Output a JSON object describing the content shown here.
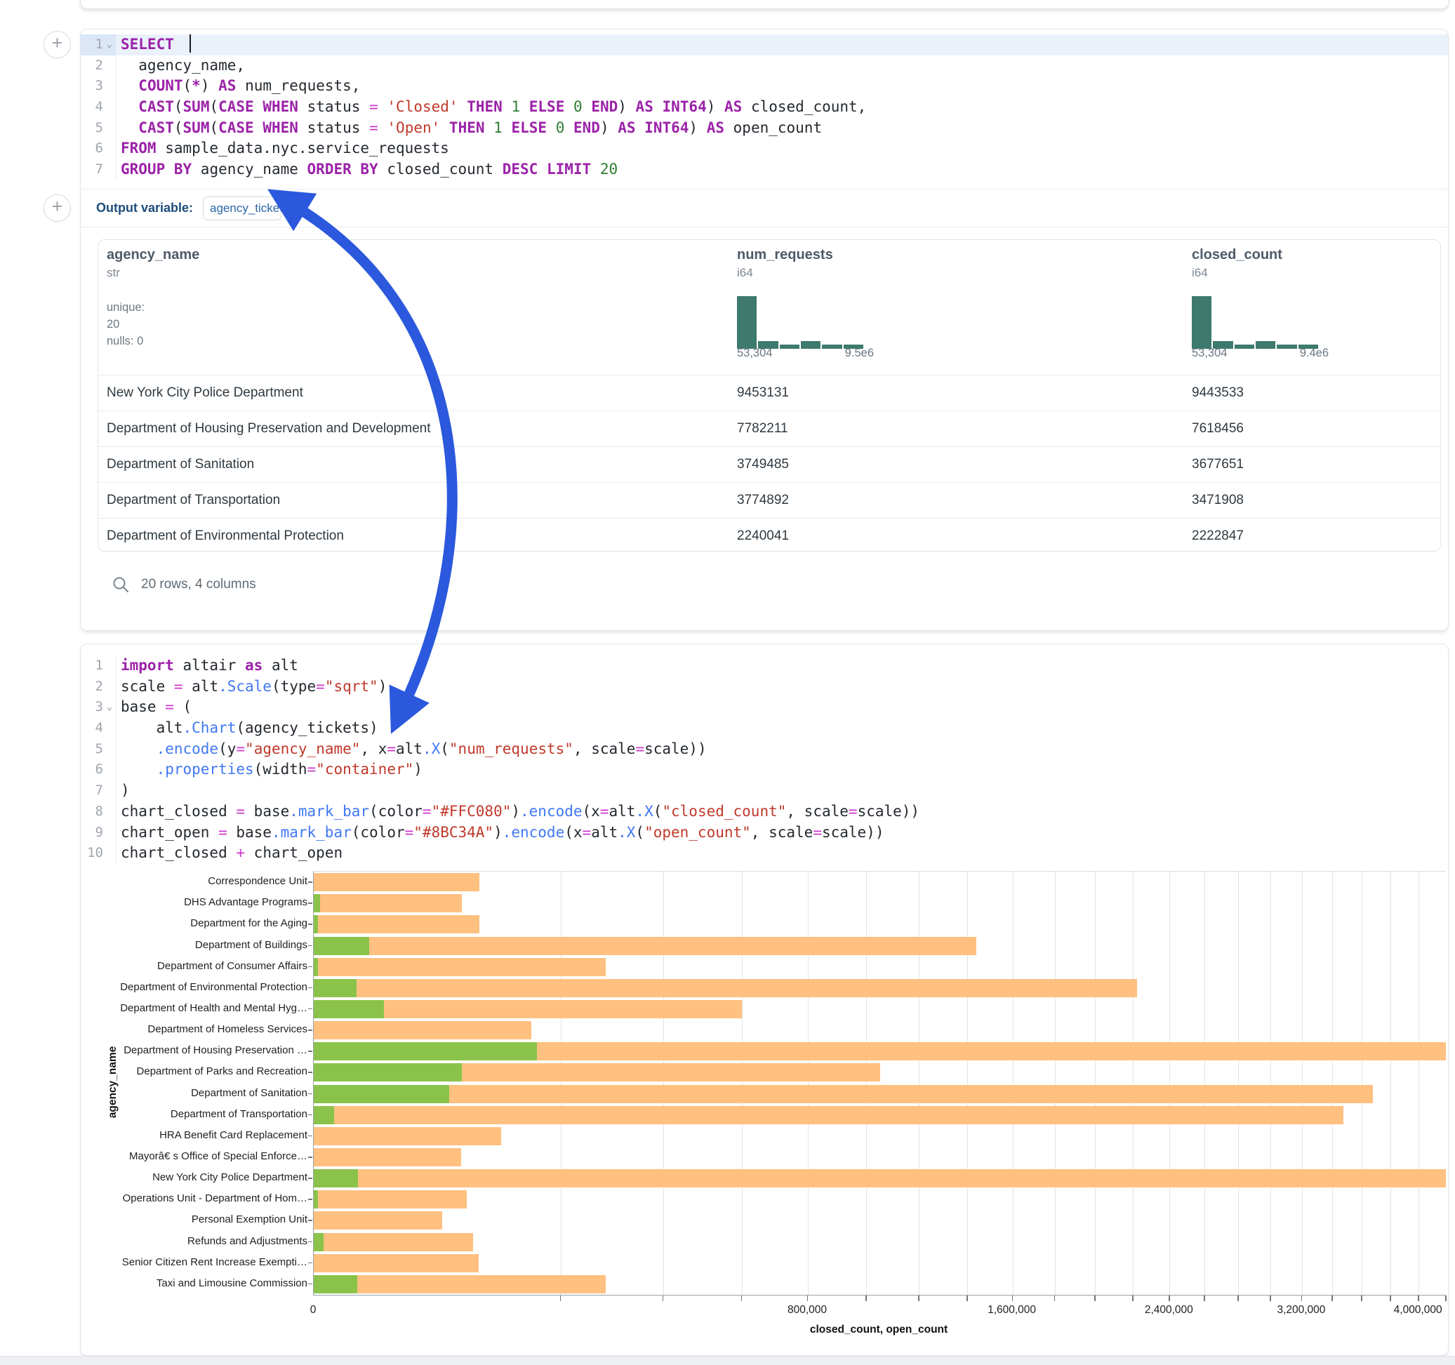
{
  "colors": {
    "closed_bar": "#FFC080",
    "open_bar": "#8BC34A",
    "histogram": "#3d7a6d",
    "annotation_arrow": "#2b58dd",
    "active_line_bg": "#eaf1fb"
  },
  "sql_cell": {
    "active_line": 1,
    "cursor_line": 1,
    "chevron_lines": [
      1
    ],
    "lines": [
      [
        [
          "kw",
          "SELECT"
        ],
        [
          "pl",
          " "
        ]
      ],
      [
        [
          "pl",
          "  agency_name,"
        ]
      ],
      [
        [
          "pl",
          "  "
        ],
        [
          "kw",
          "COUNT"
        ],
        [
          "pl",
          "("
        ],
        [
          "kw",
          "*"
        ],
        [
          "pl",
          ") "
        ],
        [
          "kw",
          "AS"
        ],
        [
          "pl",
          " num_requests,"
        ]
      ],
      [
        [
          "pl",
          "  "
        ],
        [
          "kw",
          "CAST"
        ],
        [
          "pl",
          "("
        ],
        [
          "kw",
          "SUM"
        ],
        [
          "pl",
          "("
        ],
        [
          "kw",
          "CASE"
        ],
        [
          "pl",
          " "
        ],
        [
          "kw",
          "WHEN"
        ],
        [
          "pl",
          " status "
        ],
        [
          "op",
          "="
        ],
        [
          "pl",
          " "
        ],
        [
          "str",
          "'Closed'"
        ],
        [
          "pl",
          " "
        ],
        [
          "kw",
          "THEN"
        ],
        [
          "pl",
          " "
        ],
        [
          "num",
          "1"
        ],
        [
          "pl",
          " "
        ],
        [
          "kw",
          "ELSE"
        ],
        [
          "pl",
          " "
        ],
        [
          "num",
          "0"
        ],
        [
          "pl",
          " "
        ],
        [
          "kw",
          "END"
        ],
        [
          "pl",
          ") "
        ],
        [
          "kw",
          "AS"
        ],
        [
          "pl",
          " "
        ],
        [
          "kw",
          "INT64"
        ],
        [
          "pl",
          ") "
        ],
        [
          "kw",
          "AS"
        ],
        [
          "pl",
          " closed_count,"
        ]
      ],
      [
        [
          "pl",
          "  "
        ],
        [
          "kw",
          "CAST"
        ],
        [
          "pl",
          "("
        ],
        [
          "kw",
          "SUM"
        ],
        [
          "pl",
          "("
        ],
        [
          "kw",
          "CASE"
        ],
        [
          "pl",
          " "
        ],
        [
          "kw",
          "WHEN"
        ],
        [
          "pl",
          " status "
        ],
        [
          "op",
          "="
        ],
        [
          "pl",
          " "
        ],
        [
          "str",
          "'Open'"
        ],
        [
          "pl",
          " "
        ],
        [
          "kw",
          "THEN"
        ],
        [
          "pl",
          " "
        ],
        [
          "num",
          "1"
        ],
        [
          "pl",
          " "
        ],
        [
          "kw",
          "ELSE"
        ],
        [
          "pl",
          " "
        ],
        [
          "num",
          "0"
        ],
        [
          "pl",
          " "
        ],
        [
          "kw",
          "END"
        ],
        [
          "pl",
          ") "
        ],
        [
          "kw",
          "AS"
        ],
        [
          "pl",
          " "
        ],
        [
          "kw",
          "INT64"
        ],
        [
          "pl",
          ") "
        ],
        [
          "kw",
          "AS"
        ],
        [
          "pl",
          " open_count"
        ]
      ],
      [
        [
          "kw",
          "FROM"
        ],
        [
          "pl",
          " sample_data.nyc.service_requests"
        ]
      ],
      [
        [
          "kw",
          "GROUP BY"
        ],
        [
          "pl",
          " agency_name "
        ],
        [
          "kw",
          "ORDER BY"
        ],
        [
          "pl",
          " closed_count "
        ],
        [
          "kw",
          "DESC"
        ],
        [
          "pl",
          " "
        ],
        [
          "kw",
          "LIMIT"
        ],
        [
          "pl",
          " "
        ],
        [
          "num",
          "20"
        ]
      ]
    ]
  },
  "output_row": {
    "label": "Output variable:",
    "variable": "agency_tickets"
  },
  "table": {
    "columns": [
      {
        "name": "agency_name",
        "type": "str",
        "stats": [
          "unique: 20",
          "nulls: 0"
        ]
      },
      {
        "name": "num_requests",
        "type": "i64",
        "hist": [
          1,
          0.15,
          0.08,
          0.15,
          0.08,
          0.08
        ],
        "min_label": "53,304",
        "max_label": "9.5e6"
      },
      {
        "name": "closed_count",
        "type": "i64",
        "hist": [
          1,
          0.15,
          0.08,
          0.15,
          0.08,
          0.08
        ],
        "min_label": "53,304",
        "max_label": "9.4e6"
      }
    ],
    "rows": [
      [
        "New York City Police Department",
        "9453131",
        "9443533"
      ],
      [
        "Department of Housing Preservation and Development",
        "7782211",
        "7618456"
      ],
      [
        "Department of Sanitation",
        "3749485",
        "3677651"
      ],
      [
        "Department of Transportation",
        "3774892",
        "3471908"
      ],
      [
        "Department of Environmental Protection",
        "2240041",
        "2222847"
      ]
    ],
    "footer": "20 rows, 4 columns"
  },
  "python_cell": {
    "chevron_lines": [
      3
    ],
    "lines": [
      [
        [
          "kw",
          "import"
        ],
        [
          "pl",
          " altair "
        ],
        [
          "kw",
          "as"
        ],
        [
          "pl",
          " alt"
        ]
      ],
      [
        [
          "pl",
          "scale "
        ],
        [
          "op",
          "="
        ],
        [
          "pl",
          " alt"
        ],
        [
          "fn",
          ".Scale"
        ],
        [
          "pl",
          "(type"
        ],
        [
          "op",
          "="
        ],
        [
          "str",
          "\"sqrt\""
        ],
        [
          "pl",
          ")"
        ]
      ],
      [
        [
          "pl",
          "base "
        ],
        [
          "op",
          "="
        ],
        [
          "pl",
          " ("
        ]
      ],
      [
        [
          "pl",
          "    alt"
        ],
        [
          "fn",
          ".Chart"
        ],
        [
          "pl",
          "(agency_tickets)"
        ]
      ],
      [
        [
          "pl",
          "    "
        ],
        [
          "fn",
          ".encode"
        ],
        [
          "pl",
          "(y"
        ],
        [
          "op",
          "="
        ],
        [
          "str",
          "\"agency_name\""
        ],
        [
          "pl",
          ", x"
        ],
        [
          "op",
          "="
        ],
        [
          "pl",
          "alt"
        ],
        [
          "fn",
          ".X"
        ],
        [
          "pl",
          "("
        ],
        [
          "str",
          "\"num_requests\""
        ],
        [
          "pl",
          ", scale"
        ],
        [
          "op",
          "="
        ],
        [
          "pl",
          "scale))"
        ]
      ],
      [
        [
          "pl",
          "    "
        ],
        [
          "fn",
          ".properties"
        ],
        [
          "pl",
          "(width"
        ],
        [
          "op",
          "="
        ],
        [
          "str",
          "\"container\""
        ],
        [
          "pl",
          ")"
        ]
      ],
      [
        [
          "pl",
          ")"
        ]
      ],
      [
        [
          "pl",
          "chart_closed "
        ],
        [
          "op",
          "="
        ],
        [
          "pl",
          " base"
        ],
        [
          "fn",
          ".mark_bar"
        ],
        [
          "pl",
          "(color"
        ],
        [
          "op",
          "="
        ],
        [
          "str",
          "\"#FFC080\""
        ],
        [
          "pl",
          ")"
        ],
        [
          "fn",
          ".encode"
        ],
        [
          "pl",
          "(x"
        ],
        [
          "op",
          "="
        ],
        [
          "pl",
          "alt"
        ],
        [
          "fn",
          ".X"
        ],
        [
          "pl",
          "("
        ],
        [
          "str",
          "\"closed_count\""
        ],
        [
          "pl",
          ", scale"
        ],
        [
          "op",
          "="
        ],
        [
          "pl",
          "scale))"
        ]
      ],
      [
        [
          "pl",
          "chart_open "
        ],
        [
          "op",
          "="
        ],
        [
          "pl",
          " base"
        ],
        [
          "fn",
          ".mark_bar"
        ],
        [
          "pl",
          "(color"
        ],
        [
          "op",
          "="
        ],
        [
          "str",
          "\"#8BC34A\""
        ],
        [
          "pl",
          ")"
        ],
        [
          "fn",
          ".encode"
        ],
        [
          "pl",
          "(x"
        ],
        [
          "op",
          "="
        ],
        [
          "pl",
          "alt"
        ],
        [
          "fn",
          ".X"
        ],
        [
          "pl",
          "("
        ],
        [
          "str",
          "\"open_count\""
        ],
        [
          "pl",
          ", scale"
        ],
        [
          "op",
          "="
        ],
        [
          "pl",
          "scale))"
        ]
      ],
      [
        [
          "pl",
          "chart_closed "
        ],
        [
          "op",
          "+"
        ],
        [
          "pl",
          " chart_open"
        ]
      ]
    ]
  },
  "chart_data": {
    "type": "bar",
    "orientation": "horizontal",
    "x_scale": "sqrt",
    "grid": true,
    "xlabel": "closed_count, open_count",
    "ylabel": "agency_name",
    "x_domain": [
      0,
      4200000
    ],
    "x_grid_step": 200000,
    "x_tick_labels": [
      {
        "v": 0,
        "label": "0"
      },
      {
        "v": 800000,
        "label": "800,000"
      },
      {
        "v": 1600000,
        "label": "1,600,000"
      },
      {
        "v": 2400000,
        "label": "2,400,000"
      },
      {
        "v": 3200000,
        "label": "3,200,000"
      },
      {
        "v": 4000000,
        "label": "4,000,000"
      }
    ],
    "categories": [
      "Correspondence Unit",
      "DHS Advantage Programs",
      "Department for the Aging",
      "Department of Buildings",
      "Department of Consumer Affairs",
      "Department of Environmental Protection",
      "Department of Health and Mental Hyg…",
      "Department of Homeless Services",
      "Department of Housing Preservation …",
      "Department of Parks and Recreation",
      "Department of Sanitation",
      "Department of Transportation",
      "HRA Benefit Card Replacement",
      "Mayorâ€ s Office of Special Enforce…",
      "New York City Police Department",
      "Operations Unit - Department of Hom…",
      "Personal Exemption Unit",
      "Refunds and Adjustments",
      "Senior Citizen Rent Increase Exempti…",
      "Taxi and Limousine Commission"
    ],
    "series": [
      {
        "name": "closed_count",
        "color": "#FFC080",
        "values": [
          90000,
          72000,
          90000,
          1440000,
          280000,
          2222847,
          600000,
          155000,
          7618456,
          1050000,
          3677651,
          3471908,
          115000,
          71000,
          9443533,
          77000,
          54000,
          83000,
          89000,
          280000
        ]
      },
      {
        "name": "open_count",
        "color": "#8BC34A",
        "values": [
          0,
          120,
          60,
          10000,
          50,
          6000,
          16000,
          0,
          163755,
          72000,
          60000,
          1400,
          0,
          0,
          6500,
          50,
          0,
          300,
          0,
          6300
        ]
      }
    ]
  }
}
